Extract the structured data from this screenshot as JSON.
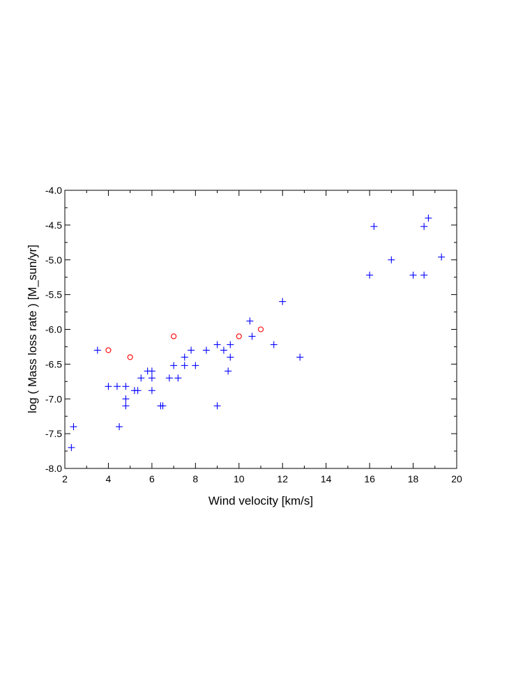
{
  "chart_data": {
    "type": "scatter",
    "title": "",
    "xlabel": "Wind velocity [km/s]",
    "ylabel": "log ( Mass loss rate )  [M_sun/yr]",
    "xlim": [
      2,
      20
    ],
    "ylim": [
      -8.0,
      -4.0
    ],
    "xticks": [
      2,
      4,
      6,
      8,
      10,
      12,
      14,
      16,
      18,
      20
    ],
    "xtick_labels": [
      "2",
      "4",
      "6",
      "8",
      "10",
      "12",
      "14",
      "16",
      "18",
      "20"
    ],
    "yticks": [
      -8.0,
      -7.5,
      -7.0,
      -6.5,
      -6.0,
      -5.5,
      -5.0,
      -4.5,
      -4.0
    ],
    "ytick_labels": [
      "-8.0",
      "-7.5",
      "-7.0",
      "-6.5",
      "-6.0",
      "-5.5",
      "-5.0",
      "-4.5",
      "-4.0"
    ],
    "grid": false,
    "legend": "none",
    "series": [
      {
        "marker": "plus",
        "color": "#0000ff",
        "points": [
          [
            2.3,
            -7.7
          ],
          [
            2.4,
            -7.4
          ],
          [
            3.5,
            -6.3
          ],
          [
            4.0,
            -6.82
          ],
          [
            4.4,
            -6.82
          ],
          [
            4.5,
            -7.4
          ],
          [
            4.8,
            -6.82
          ],
          [
            4.8,
            -7.0
          ],
          [
            4.8,
            -7.1
          ],
          [
            5.2,
            -6.88
          ],
          [
            5.35,
            -6.88
          ],
          [
            5.5,
            -6.7
          ],
          [
            5.8,
            -6.6
          ],
          [
            6.0,
            -6.6
          ],
          [
            6.0,
            -6.7
          ],
          [
            6.0,
            -6.88
          ],
          [
            6.4,
            -7.1
          ],
          [
            6.5,
            -7.1
          ],
          [
            6.8,
            -6.7
          ],
          [
            7.0,
            -6.52
          ],
          [
            7.2,
            -6.7
          ],
          [
            7.5,
            -6.4
          ],
          [
            7.5,
            -6.52
          ],
          [
            7.8,
            -6.3
          ],
          [
            8.0,
            -6.52
          ],
          [
            8.5,
            -6.3
          ],
          [
            9.0,
            -6.22
          ],
          [
            9.0,
            -7.1
          ],
          [
            9.3,
            -6.3
          ],
          [
            9.5,
            -6.6
          ],
          [
            9.6,
            -6.22
          ],
          [
            9.6,
            -6.4
          ],
          [
            10.5,
            -5.88
          ],
          [
            10.6,
            -6.1
          ],
          [
            11.6,
            -6.22
          ],
          [
            12.0,
            -5.6
          ],
          [
            12.8,
            -6.4
          ],
          [
            16.0,
            -5.22
          ],
          [
            16.2,
            -4.52
          ],
          [
            17.0,
            -5.0
          ],
          [
            18.0,
            -5.22
          ],
          [
            18.5,
            -5.22
          ],
          [
            18.5,
            -4.52
          ],
          [
            18.7,
            -4.4
          ],
          [
            19.3,
            -4.96
          ]
        ]
      },
      {
        "marker": "circle",
        "color": "#ff0000",
        "points": [
          [
            4.0,
            -6.3
          ],
          [
            5.0,
            -6.4
          ],
          [
            7.0,
            -6.1
          ],
          [
            10.0,
            -6.1
          ],
          [
            11.0,
            -6.0
          ]
        ]
      }
    ]
  }
}
